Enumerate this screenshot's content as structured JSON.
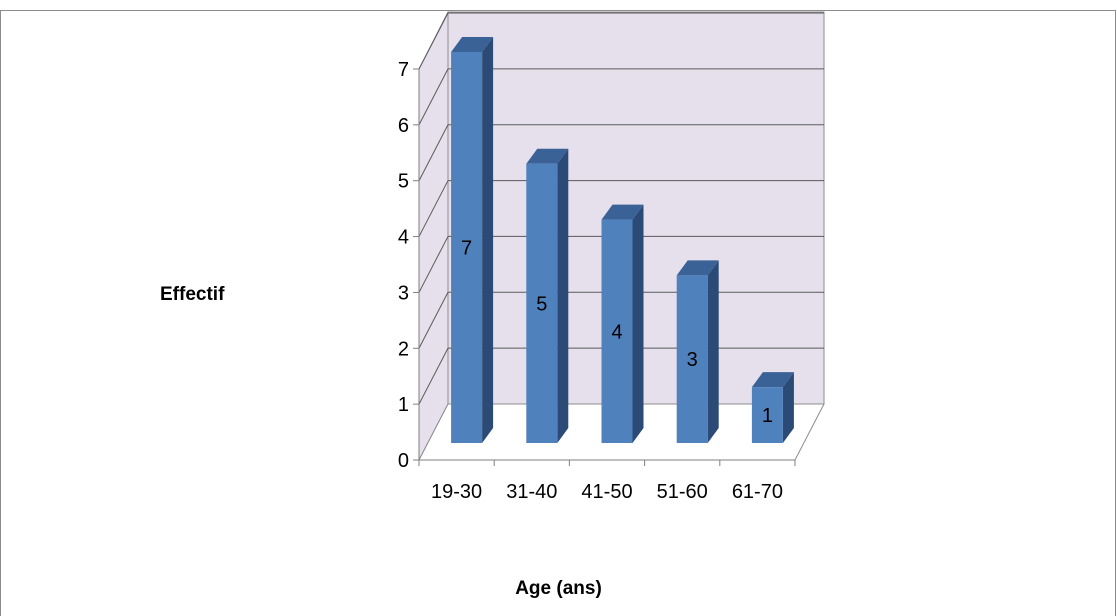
{
  "chart_data": {
    "type": "bar",
    "style": "3d-column",
    "categories": [
      "19-30",
      "31-40",
      "41-50",
      "51-60",
      "61-70"
    ],
    "values": [
      7,
      5,
      4,
      3,
      1
    ],
    "data_labels": [
      "7",
      "5",
      "4",
      "3",
      "1"
    ],
    "title": "",
    "xlabel": "Age (ans)",
    "ylabel": "Effectif",
    "ylim": [
      0,
      7
    ],
    "yticks": [
      "0",
      "1",
      "2",
      "3",
      "4",
      "5",
      "6",
      "7"
    ],
    "grid": true,
    "legend": "none",
    "colors": {
      "bar_front": "#4F81BD",
      "bar_side": "#2B4A75",
      "bar_top": "#3A6297",
      "wall": "#E6E0EC",
      "gridline": "#5a5a5a"
    }
  }
}
